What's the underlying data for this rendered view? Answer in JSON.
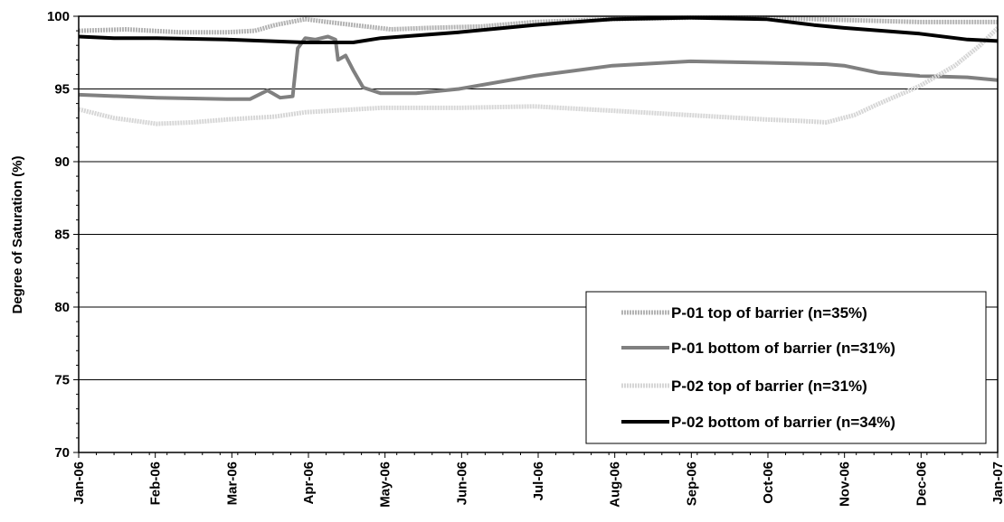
{
  "chart_data": {
    "type": "line",
    "title": "",
    "xlabel": "",
    "ylabel": "Degree of Saturation (%)",
    "ylim": [
      70,
      100
    ],
    "y_ticks": [
      "70",
      "75",
      "80",
      "85",
      "90",
      "95",
      "100"
    ],
    "x_ticks": [
      "Jan-06",
      "Feb-06",
      "Mar-06",
      "Apr-06",
      "May-06",
      "Jun-06",
      "Jul-06",
      "Aug-06",
      "Sep-06",
      "Oct-06",
      "Nov-06",
      "Dec-06",
      "Jan-07"
    ],
    "grid": "horizontal",
    "legend_position": "bottom-right",
    "series": [
      {
        "name": "P-01 top of barrier (n=35%)",
        "color": "#b3b3b3",
        "style": "dotted-thick",
        "points": [
          [
            "2006-01-01",
            99.0
          ],
          [
            "2006-01-20",
            99.1
          ],
          [
            "2006-02-10",
            98.9
          ],
          [
            "2006-03-01",
            98.9
          ],
          [
            "2006-03-12",
            99.0
          ],
          [
            "2006-03-20",
            99.4
          ],
          [
            "2006-04-01",
            99.8
          ],
          [
            "2006-04-10",
            99.6
          ],
          [
            "2006-04-25",
            99.3
          ],
          [
            "2006-05-05",
            99.1
          ],
          [
            "2006-05-20",
            99.2
          ],
          [
            "2006-06-10",
            99.3
          ],
          [
            "2006-07-01",
            99.6
          ],
          [
            "2006-08-01",
            99.8
          ],
          [
            "2006-09-01",
            99.9
          ],
          [
            "2006-10-01",
            99.9
          ],
          [
            "2006-10-20",
            99.8
          ],
          [
            "2006-11-10",
            99.7
          ],
          [
            "2006-12-01",
            99.6
          ],
          [
            "2006-12-20",
            99.6
          ],
          [
            "2007-01-01",
            99.6
          ]
        ]
      },
      {
        "name": "P-01 bottom of barrier (n=31%)",
        "color": "#808080",
        "style": "solid-thick",
        "points": [
          [
            "2006-01-01",
            94.6
          ],
          [
            "2006-02-01",
            94.4
          ],
          [
            "2006-03-01",
            94.3
          ],
          [
            "2006-03-10",
            94.3
          ],
          [
            "2006-03-17",
            94.9
          ],
          [
            "2006-03-22",
            94.4
          ],
          [
            "2006-03-27",
            94.5
          ],
          [
            "2006-03-29",
            97.8
          ],
          [
            "2006-04-01",
            98.5
          ],
          [
            "2006-04-05",
            98.4
          ],
          [
            "2006-04-10",
            98.6
          ],
          [
            "2006-04-13",
            98.4
          ],
          [
            "2006-04-14",
            97.0
          ],
          [
            "2006-04-17",
            97.3
          ],
          [
            "2006-04-20",
            96.3
          ],
          [
            "2006-04-24",
            95.1
          ],
          [
            "2006-05-01",
            94.7
          ],
          [
            "2006-05-15",
            94.7
          ],
          [
            "2006-06-01",
            95.0
          ],
          [
            "2006-07-01",
            95.9
          ],
          [
            "2006-08-01",
            96.6
          ],
          [
            "2006-09-01",
            96.9
          ],
          [
            "2006-10-01",
            96.8
          ],
          [
            "2006-10-25",
            96.7
          ],
          [
            "2006-11-01",
            96.6
          ],
          [
            "2006-11-15",
            96.1
          ],
          [
            "2006-12-01",
            95.9
          ],
          [
            "2006-12-20",
            95.8
          ],
          [
            "2007-01-01",
            95.6
          ]
        ]
      },
      {
        "name": "P-02 top of barrier (n=31%)",
        "color": "#d6d6d6",
        "style": "dotted-thick",
        "points": [
          [
            "2006-01-01",
            93.6
          ],
          [
            "2006-01-15",
            93.0
          ],
          [
            "2006-02-01",
            92.6
          ],
          [
            "2006-02-15",
            92.7
          ],
          [
            "2006-03-01",
            92.9
          ],
          [
            "2006-03-20",
            93.1
          ],
          [
            "2006-04-01",
            93.4
          ],
          [
            "2006-05-01",
            93.7
          ],
          [
            "2006-06-01",
            93.7
          ],
          [
            "2006-07-01",
            93.8
          ],
          [
            "2006-08-01",
            93.5
          ],
          [
            "2006-09-01",
            93.2
          ],
          [
            "2006-10-01",
            92.9
          ],
          [
            "2006-10-15",
            92.8
          ],
          [
            "2006-10-25",
            92.7
          ],
          [
            "2006-11-05",
            93.2
          ],
          [
            "2006-11-15",
            94.0
          ],
          [
            "2006-12-01",
            95.2
          ],
          [
            "2006-12-15",
            96.6
          ],
          [
            "2006-12-25",
            98.0
          ],
          [
            "2007-01-01",
            99.2
          ]
        ]
      },
      {
        "name": "P-02 bottom of barrier (n=34%)",
        "color": "#000000",
        "style": "solid-thick",
        "points": [
          [
            "2006-01-01",
            98.6
          ],
          [
            "2006-01-15",
            98.5
          ],
          [
            "2006-02-01",
            98.5
          ],
          [
            "2006-03-01",
            98.4
          ],
          [
            "2006-04-01",
            98.2
          ],
          [
            "2006-04-20",
            98.2
          ],
          [
            "2006-05-01",
            98.5
          ],
          [
            "2006-06-01",
            98.9
          ],
          [
            "2006-07-01",
            99.4
          ],
          [
            "2006-08-01",
            99.8
          ],
          [
            "2006-09-01",
            99.9
          ],
          [
            "2006-10-01",
            99.8
          ],
          [
            "2006-10-20",
            99.4
          ],
          [
            "2006-11-01",
            99.2
          ],
          [
            "2006-12-01",
            98.8
          ],
          [
            "2006-12-20",
            98.4
          ],
          [
            "2007-01-01",
            98.3
          ]
        ]
      }
    ]
  }
}
